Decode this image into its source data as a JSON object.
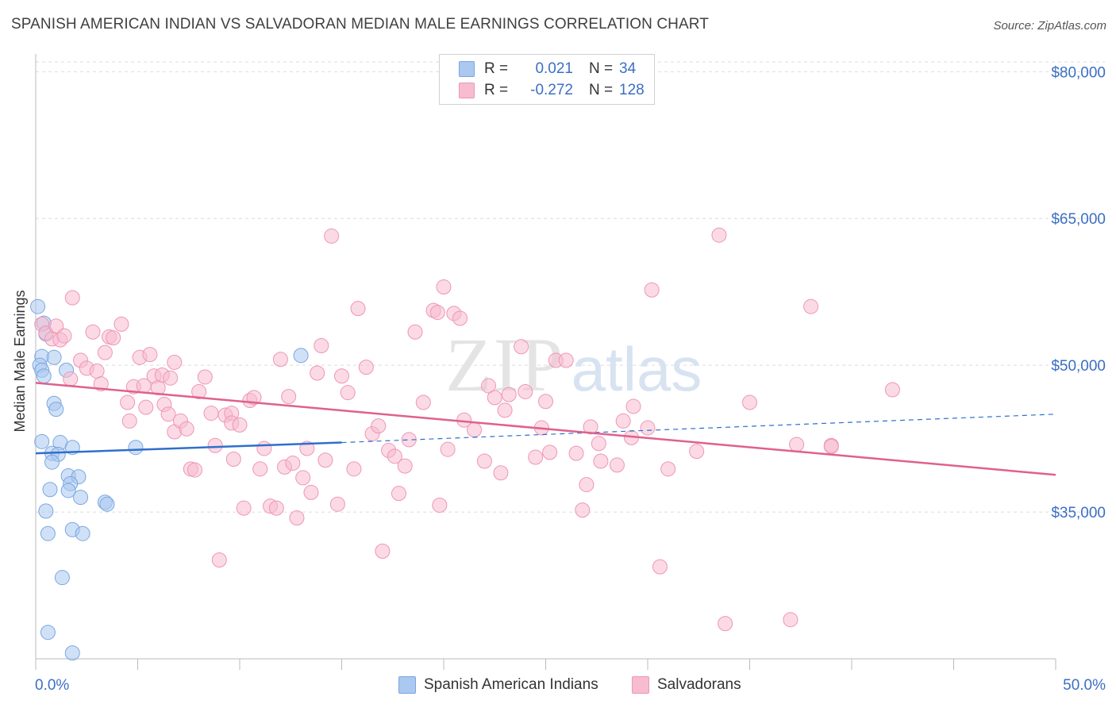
{
  "title": "SPANISH AMERICAN INDIAN VS SALVADORAN MEDIAN MALE EARNINGS CORRELATION CHART",
  "source": "Source: ZipAtlas.com",
  "watermark": {
    "zip": "ZIP",
    "atlas": "atlas"
  },
  "legend": {
    "rows": [
      {
        "r_label": "R =",
        "r_value": "0.021",
        "n_label": "N =",
        "n_value": "34",
        "color": "#aac8f0",
        "border": "#7aa6e0"
      },
      {
        "r_label": "R =",
        "r_value": "-0.272",
        "n_label": "N =",
        "n_value": "128",
        "color": "#f7bcd0",
        "border": "#ee96b4"
      }
    ]
  },
  "bottom_legend": {
    "series1": "Spanish American Indians",
    "series2": "Salvadorans"
  },
  "chart_data": {
    "type": "scatter",
    "title": "SPANISH AMERICAN INDIAN VS SALVADORAN MEDIAN MALE EARNINGS CORRELATION CHART",
    "xlabel": "",
    "ylabel": "Median Male Earnings",
    "xlim": [
      0,
      50
    ],
    "ylim": [
      20000,
      81000
    ],
    "x_tick_labels": [
      "0.0%",
      "50.0%"
    ],
    "y_ticks": [
      35000,
      50000,
      65000,
      80000
    ],
    "y_tick_labels": [
      "$35,000",
      "$50,000",
      "$65,000",
      "$80,000"
    ],
    "grid": true,
    "legend_position": "top-center",
    "series": [
      {
        "name": "Spanish American Indians",
        "color": "#7aa6e0",
        "fill": "#aac8f0",
        "trend": {
          "x0": 0,
          "y0": 41000,
          "x1": 15,
          "y1": 42100,
          "dashed_to_x": 50,
          "dashed_to_y": 45000,
          "color": "#2f6fcc"
        },
        "points": [
          [
            0.1,
            56000
          ],
          [
            0.4,
            54300
          ],
          [
            0.5,
            53200
          ],
          [
            0.3,
            50900
          ],
          [
            0.2,
            50000
          ],
          [
            0.3,
            49500
          ],
          [
            0.4,
            48900
          ],
          [
            0.9,
            50800
          ],
          [
            1.5,
            49500
          ],
          [
            0.9,
            46100
          ],
          [
            1.0,
            45500
          ],
          [
            0.3,
            42200
          ],
          [
            1.2,
            42100
          ],
          [
            1.8,
            41600
          ],
          [
            0.8,
            41000
          ],
          [
            1.1,
            40900
          ],
          [
            0.8,
            40100
          ],
          [
            1.6,
            38700
          ],
          [
            2.1,
            38600
          ],
          [
            1.7,
            37900
          ],
          [
            0.7,
            37300
          ],
          [
            1.6,
            37200
          ],
          [
            2.2,
            36500
          ],
          [
            3.4,
            36000
          ],
          [
            3.5,
            35800
          ],
          [
            0.5,
            35100
          ],
          [
            0.6,
            32800
          ],
          [
            1.8,
            33200
          ],
          [
            2.3,
            32800
          ],
          [
            1.3,
            28300
          ],
          [
            0.6,
            22700
          ],
          [
            1.8,
            20600
          ],
          [
            13.0,
            51000
          ],
          [
            4.9,
            41600
          ]
        ]
      },
      {
        "name": "Salvadorans",
        "color": "#ee96b4",
        "fill": "#f7bcd0",
        "trend": {
          "x0": 0,
          "y0": 48200,
          "x1": 50,
          "y1": 38800,
          "color": "#e0608e"
        },
        "points": [
          [
            0.3,
            54200
          ],
          [
            0.5,
            53300
          ],
          [
            0.8,
            52700
          ],
          [
            1.0,
            54000
          ],
          [
            1.2,
            52600
          ],
          [
            1.4,
            53000
          ],
          [
            1.7,
            48600
          ],
          [
            1.8,
            56900
          ],
          [
            2.2,
            50500
          ],
          [
            2.8,
            53400
          ],
          [
            2.5,
            49700
          ],
          [
            3.0,
            49400
          ],
          [
            3.2,
            48100
          ],
          [
            3.4,
            51300
          ],
          [
            3.6,
            52900
          ],
          [
            3.8,
            52800
          ],
          [
            4.2,
            54200
          ],
          [
            4.5,
            46200
          ],
          [
            4.6,
            44300
          ],
          [
            4.8,
            47800
          ],
          [
            5.1,
            50800
          ],
          [
            5.4,
            45700
          ],
          [
            5.3,
            47900
          ],
          [
            5.6,
            51100
          ],
          [
            5.8,
            48900
          ],
          [
            6.0,
            47700
          ],
          [
            6.2,
            49000
          ],
          [
            6.3,
            46000
          ],
          [
            6.5,
            45000
          ],
          [
            6.6,
            48700
          ],
          [
            6.8,
            43200
          ],
          [
            6.8,
            50300
          ],
          [
            7.1,
            44300
          ],
          [
            7.4,
            43500
          ],
          [
            7.6,
            39400
          ],
          [
            7.8,
            39300
          ],
          [
            8.0,
            47300
          ],
          [
            8.3,
            48800
          ],
          [
            8.6,
            45100
          ],
          [
            8.8,
            41800
          ],
          [
            9.0,
            30100
          ],
          [
            9.3,
            44900
          ],
          [
            9.6,
            45100
          ],
          [
            9.6,
            44100
          ],
          [
            9.7,
            40400
          ],
          [
            10.0,
            43900
          ],
          [
            10.2,
            35400
          ],
          [
            10.5,
            46400
          ],
          [
            10.7,
            46700
          ],
          [
            11.0,
            39400
          ],
          [
            11.2,
            41500
          ],
          [
            11.5,
            35600
          ],
          [
            11.8,
            35400
          ],
          [
            12.0,
            50600
          ],
          [
            12.2,
            39600
          ],
          [
            12.4,
            46800
          ],
          [
            12.6,
            40000
          ],
          [
            12.8,
            34400
          ],
          [
            13.1,
            38500
          ],
          [
            13.3,
            41500
          ],
          [
            13.5,
            37000
          ],
          [
            13.8,
            49200
          ],
          [
            14.0,
            52000
          ],
          [
            14.2,
            40300
          ],
          [
            14.5,
            63200
          ],
          [
            14.8,
            35800
          ],
          [
            15.0,
            48900
          ],
          [
            15.3,
            47200
          ],
          [
            15.6,
            39400
          ],
          [
            15.8,
            55800
          ],
          [
            16.2,
            49800
          ],
          [
            16.5,
            43000
          ],
          [
            16.8,
            43800
          ],
          [
            17.0,
            31000
          ],
          [
            17.3,
            41300
          ],
          [
            17.6,
            40700
          ],
          [
            17.8,
            36900
          ],
          [
            18.1,
            39700
          ],
          [
            18.3,
            42400
          ],
          [
            18.6,
            53400
          ],
          [
            19.0,
            46200
          ],
          [
            19.5,
            55600
          ],
          [
            19.7,
            55400
          ],
          [
            19.8,
            35700
          ],
          [
            20.0,
            58000
          ],
          [
            20.2,
            41400
          ],
          [
            20.5,
            55300
          ],
          [
            20.8,
            54800
          ],
          [
            21.0,
            44400
          ],
          [
            21.5,
            43400
          ],
          [
            22.0,
            40200
          ],
          [
            22.2,
            47900
          ],
          [
            22.5,
            46700
          ],
          [
            22.8,
            39000
          ],
          [
            23.0,
            45400
          ],
          [
            23.2,
            47000
          ],
          [
            23.8,
            51900
          ],
          [
            24.0,
            47300
          ],
          [
            24.5,
            40600
          ],
          [
            24.8,
            43600
          ],
          [
            25.0,
            46300
          ],
          [
            25.2,
            41100
          ],
          [
            25.5,
            50500
          ],
          [
            26.0,
            50500
          ],
          [
            26.5,
            41000
          ],
          [
            26.8,
            35200
          ],
          [
            27.0,
            37800
          ],
          [
            27.2,
            43700
          ],
          [
            27.6,
            42000
          ],
          [
            27.7,
            40200
          ],
          [
            28.5,
            39800
          ],
          [
            28.8,
            44300
          ],
          [
            29.2,
            42600
          ],
          [
            29.3,
            45800
          ],
          [
            30.0,
            43600
          ],
          [
            30.2,
            57700
          ],
          [
            30.6,
            29400
          ],
          [
            31.0,
            39400
          ],
          [
            32.4,
            41200
          ],
          [
            33.5,
            63300
          ],
          [
            33.8,
            23600
          ],
          [
            35.0,
            46200
          ],
          [
            37.0,
            24000
          ],
          [
            37.3,
            41900
          ],
          [
            38.0,
            56000
          ],
          [
            39.0,
            41800
          ],
          [
            42.0,
            47500
          ],
          [
            39.0,
            41700
          ]
        ]
      }
    ]
  }
}
